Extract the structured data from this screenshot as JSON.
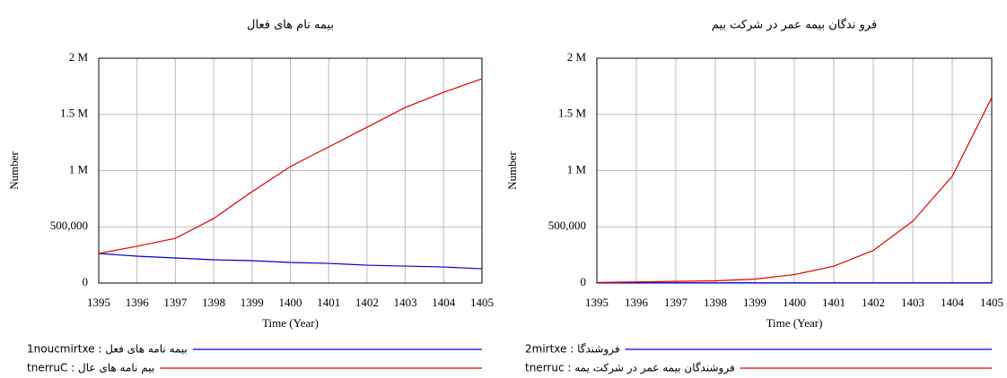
{
  "chart_data": [
    {
      "type": "line",
      "title": "بیمه نام  های فعال",
      "y_label": "Number",
      "x_label": "Time (Year)",
      "x": [
        1395,
        1396,
        1397,
        1398,
        1399,
        1400,
        1401,
        1402,
        1403,
        1404,
        1405
      ],
      "xlim": [
        1395,
        1405
      ],
      "xticks": [
        1395,
        1396,
        1397,
        1398,
        1399,
        1400,
        1401,
        1402,
        1403,
        1404,
        1405
      ],
      "ylim": [
        0,
        2000000
      ],
      "yticks": [
        0,
        {
          "value": 500000,
          "label": "500,000"
        },
        {
          "value": 1000000,
          "label": "1 M"
        },
        {
          "value": 1500000,
          "label": "1.5 M"
        },
        {
          "value": 2000000,
          "label": "2 M"
        }
      ],
      "grid": true,
      "series": [
        {
          "name": "بیمه نامه های فعل : 1noucmirtxe",
          "color": "#0000cc",
          "values": [
            263000,
            239000,
            223000,
            207000,
            199000,
            183000,
            175000,
            159000,
            151000,
            143000,
            127000
          ]
        },
        {
          "name": "بیم نامه های عال : tnerruC",
          "color": "#e00000",
          "values": [
            263000,
            327000,
            398000,
            574000,
            813000,
            1036000,
            1211000,
            1386000,
            1562000,
            1697000,
            1817000
          ]
        }
      ]
    },
    {
      "type": "line",
      "title": "فرو ندگان بیمه عمر در شرکت بیم",
      "y_label": "Number",
      "x_label": "Time (Year)",
      "x": [
        1395,
        1396,
        1397,
        1398,
        1399,
        1400,
        1401,
        1402,
        1403,
        1404,
        1405
      ],
      "xlim": [
        1395,
        1405
      ],
      "xticks": [
        1395,
        1396,
        1397,
        1398,
        1399,
        1400,
        1401,
        1402,
        1403,
        1404,
        1405
      ],
      "ylim": [
        0,
        2000000
      ],
      "yticks": [
        0,
        {
          "value": 500000,
          "label": "500,000"
        },
        {
          "value": 1000000,
          "label": "1 M"
        },
        {
          "value": 1500000,
          "label": "1.5 M"
        },
        {
          "value": 2000000,
          "label": "2 M"
        }
      ],
      "grid": true,
      "series": [
        {
          "name": "فروشندگا : 2mirtxe",
          "color": "#0000cc",
          "values": [
            2000,
            2000,
            2000,
            2000,
            2000,
            2000,
            2000,
            2000,
            2000,
            2000,
            2000
          ]
        },
        {
          "name": "فروشندگان بیمه عمر در شرکت یمه : tnerruc",
          "color": "#e00000",
          "values": [
            5000,
            10000,
            15000,
            20000,
            35000,
            75000,
            150000,
            290000,
            550000,
            950000,
            1650000
          ]
        }
      ]
    }
  ]
}
